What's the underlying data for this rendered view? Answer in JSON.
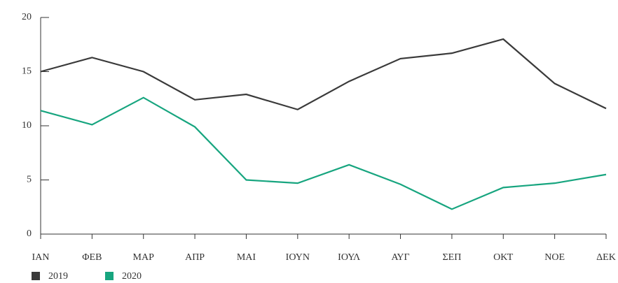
{
  "chart_data": {
    "type": "line",
    "categories": [
      "ΙΑΝ",
      "ΦΕΒ",
      "ΜΑΡ",
      "ΑΠΡ",
      "ΜΑΙ",
      "ΙΟΥΝ",
      "ΙΟΥΛ",
      "ΑΥΓ",
      "ΣΕΠ",
      "ΟΚΤ",
      "ΝΟΕ",
      "ΔΕΚ"
    ],
    "series": [
      {
        "name": "2019",
        "color": "#3a3a3a",
        "values": [
          15.0,
          16.3,
          15.0,
          12.4,
          12.9,
          11.5,
          14.1,
          16.2,
          16.7,
          18.0,
          13.9,
          11.6
        ]
      },
      {
        "name": "2020",
        "color": "#17a57f",
        "values": [
          11.4,
          10.1,
          12.6,
          9.9,
          5.0,
          4.7,
          6.4,
          4.6,
          2.3,
          4.3,
          4.7,
          5.5
        ]
      }
    ],
    "ylim": [
      0,
      20
    ],
    "yticks": [
      0,
      5,
      10,
      15,
      20
    ],
    "grid": false
  }
}
